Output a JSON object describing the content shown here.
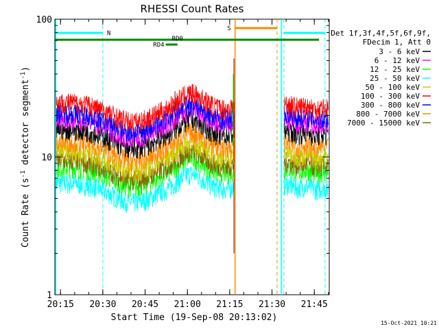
{
  "chart_data": {
    "type": "line",
    "title": "RHESSI Count Rates",
    "xlabel": "Start Time (19-Sep-08 20:13:02)",
    "ylabel_prefix": "Count Rate (s",
    "ylabel_exp1": "-1",
    "ylabel_mid": " detector segment",
    "ylabel_exp2": "-1",
    "ylabel_suffix": ")",
    "yscale": "log",
    "ylim": [
      1,
      100
    ],
    "xlim_minutes": [
      20.15,
      21.813
    ],
    "x_ticks": [
      "20:15",
      "20:30",
      "20:45",
      "21:00",
      "21:15",
      "21:30",
      "21:45"
    ],
    "x_tick_values": [
      20.25,
      20.5,
      20.75,
      21.0,
      21.25,
      21.5,
      21.75
    ],
    "y_ticks": [
      "1",
      "10",
      "100"
    ],
    "y_tick_values": [
      1,
      10,
      100
    ],
    "legend_header": [
      "Det 1f,3f,4f,5f,6f,9f,",
      "FDecim 1, Att 0"
    ],
    "series": [
      {
        "name": "3 - 6 keV",
        "color": "#000000",
        "level": 16
      },
      {
        "name": "6 - 12 keV",
        "color": "#ff00ff",
        "level": 19
      },
      {
        "name": "12 - 25 keV",
        "color": "#00ff00",
        "level": 8.5
      },
      {
        "name": "25 - 50 keV",
        "color": "#00ffff",
        "level": 6.5
      },
      {
        "name": "50 - 100 keV",
        "color": "#cccc00",
        "level": 11
      },
      {
        "name": "100 - 300 keV",
        "color": "#ff0000",
        "level": 25
      },
      {
        "name": "300 - 800 keV",
        "color": "#0000ff",
        "level": 21
      },
      {
        "name": "800 - 7000 keV",
        "color": "#ff8800",
        "level": 13
      },
      {
        "name": "7000 - 15000 keV",
        "color": "#886600",
        "level": 9.5
      }
    ],
    "gaps": [
      {
        "start": 21.28,
        "end": 21.57
      }
    ],
    "annotations": {
      "N_label": "N",
      "S_label": "S",
      "RD4_label": "RD4",
      "RD0_label": "RD0"
    },
    "colors": {
      "night": "#00ffff",
      "saa": "#ff8800",
      "rd": "#008800"
    },
    "timestamp": "15-Oct-2021 10:21"
  }
}
